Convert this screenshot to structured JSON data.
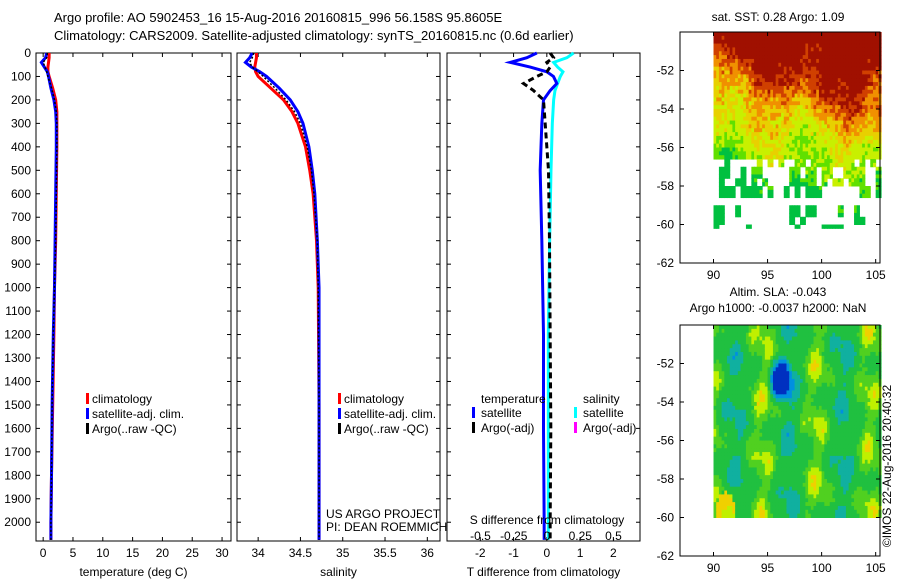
{
  "header": {
    "title_line1": "Argo profile: AO 5902453_16 15-Aug-2016 20160815_996 56.158S 95.8605E",
    "title_line2": "Climatology: CARS2009. Satellite-adjusted climatology: synTS_20160815.nc (0.6d earlier)"
  },
  "colors": {
    "climatology": "#ff0000",
    "satellite": "#0000ff",
    "argo": "#000000",
    "salinity_satellite": "#00ffff",
    "salinity_argo": "#ff00ff"
  },
  "annotation": {
    "line1": "US ARGO PROJECT",
    "line2": "PI: DEAN ROEMMICH"
  },
  "credit": "©IMOS 22-Aug-2016 20:40:32",
  "chart_data": [
    {
      "type": "line",
      "title": "",
      "xlabel": "temperature (deg C)",
      "ylabel": "",
      "xlim": [
        -1.2,
        31.5
      ],
      "ylim": [
        2080,
        0
      ],
      "xticks": [
        0,
        5,
        10,
        15,
        20,
        25,
        30
      ],
      "yticks": [
        0,
        100,
        200,
        300,
        400,
        500,
        600,
        700,
        800,
        900,
        1000,
        1100,
        1200,
        1300,
        1400,
        1500,
        1600,
        1700,
        1800,
        1900,
        2000
      ],
      "legend": [
        "climatology",
        "satellite-adj. clim.",
        "Argo(..raw -QC)"
      ],
      "depth": [
        0,
        20,
        40,
        60,
        80,
        100,
        150,
        200,
        250,
        300,
        400,
        600,
        800,
        1000,
        1200,
        1500,
        1800,
        2000,
        2075
      ],
      "series": [
        {
          "name": "climatology",
          "values": [
            1.0,
            1.0,
            0.9,
            0.8,
            0.8,
            1.0,
            1.6,
            2.1,
            2.3,
            2.3,
            2.3,
            2.2,
            2.1,
            1.9,
            1.8,
            1.6,
            1.4,
            1.3,
            1.3
          ]
        },
        {
          "name": "satellite-adj. clim.",
          "values": [
            0.6,
            0.4,
            -0.3,
            0.2,
            0.7,
            0.9,
            1.3,
            1.8,
            2.1,
            2.2,
            2.2,
            2.1,
            2.0,
            1.9,
            1.7,
            1.5,
            1.4,
            1.3,
            1.3
          ]
        },
        {
          "name": "Argo(..raw -QC)",
          "values": [
            0.7,
            0.6,
            0.0,
            0.3,
            0.6,
            0.8,
            1.4,
            1.9,
            2.2,
            2.3,
            2.3,
            2.2,
            2.1,
            1.9,
            1.7,
            1.5,
            1.4,
            1.3,
            1.3
          ]
        }
      ]
    },
    {
      "type": "line",
      "xlabel": "salinity",
      "xlim": [
        33.75,
        36.15
      ],
      "ylim": [
        2080,
        0
      ],
      "xticks": [
        34,
        34.5,
        35,
        35.5,
        36
      ],
      "legend": [
        "climatology",
        "satellite-adj. clim.",
        "Argo(..raw -QC)"
      ],
      "depth": [
        0,
        20,
        40,
        60,
        80,
        100,
        150,
        200,
        250,
        300,
        400,
        500,
        600,
        800,
        1000,
        1500,
        2000,
        2075
      ],
      "series": [
        {
          "name": "climatology",
          "values": [
            33.98,
            33.98,
            33.97,
            33.96,
            33.97,
            34.0,
            34.15,
            34.3,
            34.4,
            34.47,
            34.56,
            34.61,
            34.65,
            34.69,
            34.71,
            34.72,
            34.72,
            34.72
          ]
        },
        {
          "name": "satellite-adj. clim.",
          "values": [
            33.93,
            33.9,
            33.85,
            33.92,
            34.02,
            34.1,
            34.25,
            34.38,
            34.47,
            34.53,
            34.6,
            34.64,
            34.67,
            34.7,
            34.72,
            34.72,
            34.72,
            34.72
          ]
        },
        {
          "name": "Argo(..raw -QC)",
          "values": [
            33.95,
            33.93,
            33.9,
            33.93,
            34.0,
            34.06,
            34.2,
            34.33,
            34.43,
            34.5,
            34.58,
            34.63,
            34.66,
            34.7,
            34.71,
            34.72,
            34.72,
            34.72
          ]
        }
      ]
    },
    {
      "type": "line",
      "xlabel": "T difference from climatology",
      "xlabel2": "S difference from climatology",
      "xlim": [
        -3.0,
        2.8
      ],
      "ylim": [
        2080,
        0
      ],
      "xticks": [
        -2,
        -1,
        0,
        1,
        2
      ],
      "xticks2": [
        -0.5,
        -0.25,
        0,
        0.25,
        0.5
      ],
      "xticks2_labels": [
        "-0.5",
        "-0.25",
        "0",
        "0.25",
        "0.5"
      ],
      "legend_titles": [
        "temperature",
        "salinity"
      ],
      "legend": [
        "satellite",
        "Argo(-adj)",
        "satellite",
        "Argo(-adj)"
      ],
      "depth": [
        0,
        20,
        40,
        60,
        80,
        100,
        130,
        160,
        200,
        300,
        500,
        800,
        1200,
        1600,
        2000,
        2075
      ],
      "series": [
        {
          "name": "temperature satellite",
          "values": [
            -0.3,
            -0.6,
            -1.1,
            -0.5,
            0.0,
            0.2,
            0.3,
            0.1,
            -0.1,
            -0.15,
            -0.2,
            -0.15,
            -0.1,
            -0.1,
            -0.08,
            -0.08
          ]
        },
        {
          "name": "temperature Argo(-adj)",
          "values": [
            0.1,
            0.2,
            0.0,
            0.1,
            0.0,
            -0.3,
            -0.7,
            -0.4,
            -0.1,
            -0.05,
            0.05,
            0.08,
            0.1,
            0.12,
            0.1,
            0.1
          ]
        },
        {
          "name": "salinity satellite",
          "values": [
            0.2,
            0.15,
            0.05,
            0.08,
            0.12,
            0.1,
            0.08,
            0.06,
            0.05,
            0.04,
            0.03,
            0.02,
            0.01,
            0.01,
            0.01,
            0.01
          ]
        }
      ]
    },
    {
      "type": "heatmap",
      "title": "sat. SST: 0.28 Argo: 1.09",
      "xlim": [
        86.9,
        105.4
      ],
      "ylim": [
        -62,
        -50
      ],
      "xticks": [
        90,
        95,
        100,
        105
      ],
      "yticks": [
        -52,
        -54,
        -56,
        -58,
        -60,
        -62
      ]
    },
    {
      "type": "heatmap",
      "title": "Altim. SLA: -0.043",
      "subtitle": "Argo h1000: -0.0037 h2000: NaN",
      "xlim": [
        86.9,
        105.4
      ],
      "ylim": [
        -62,
        -50
      ],
      "xticks": [
        90,
        95,
        100,
        105
      ],
      "yticks": [
        -52,
        -54,
        -56,
        -58,
        -60,
        -62
      ]
    }
  ]
}
